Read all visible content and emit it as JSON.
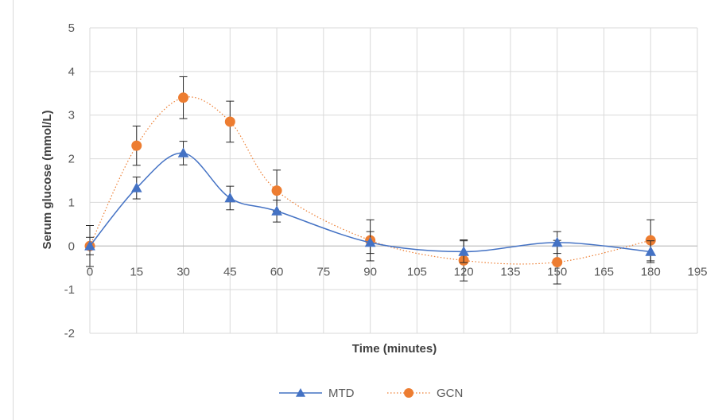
{
  "chart_data": {
    "type": "scatter",
    "xlabel": "Time (minutes)",
    "ylabel": "Serum glucose (mmol/L)",
    "xlim": [
      0,
      195
    ],
    "ylim": [
      -2,
      5
    ],
    "x_ticks": [
      0,
      15,
      30,
      45,
      60,
      75,
      90,
      105,
      120,
      135,
      150,
      165,
      180,
      195
    ],
    "y_ticks": [
      -2,
      -1,
      0,
      1,
      2,
      3,
      4,
      5
    ],
    "grid": "vertical and horizontal major gridlines",
    "legend_position": "bottom",
    "series": [
      {
        "name": "MTD",
        "color": "#4472c4",
        "marker": "triangle",
        "line": "smooth solid",
        "x": [
          0,
          15,
          30,
          45,
          60,
          90,
          120,
          150,
          180
        ],
        "y": [
          0.0,
          1.33,
          2.13,
          1.1,
          0.8,
          0.08,
          -0.13,
          0.08,
          -0.13
        ],
        "error": [
          0.2,
          0.25,
          0.27,
          0.27,
          0.25,
          0.25,
          0.25,
          0.25,
          0.25
        ]
      },
      {
        "name": "GCN",
        "color": "#ed7d31",
        "marker": "circle",
        "line": "smooth dotted",
        "x": [
          0,
          15,
          30,
          45,
          60,
          90,
          120,
          150,
          180
        ],
        "y": [
          0.0,
          2.3,
          3.4,
          2.85,
          1.27,
          0.13,
          -0.33,
          -0.37,
          0.13
        ],
        "error": [
          0.47,
          0.45,
          0.48,
          0.47,
          0.47,
          0.47,
          0.47,
          0.5,
          0.47
        ]
      }
    ]
  }
}
